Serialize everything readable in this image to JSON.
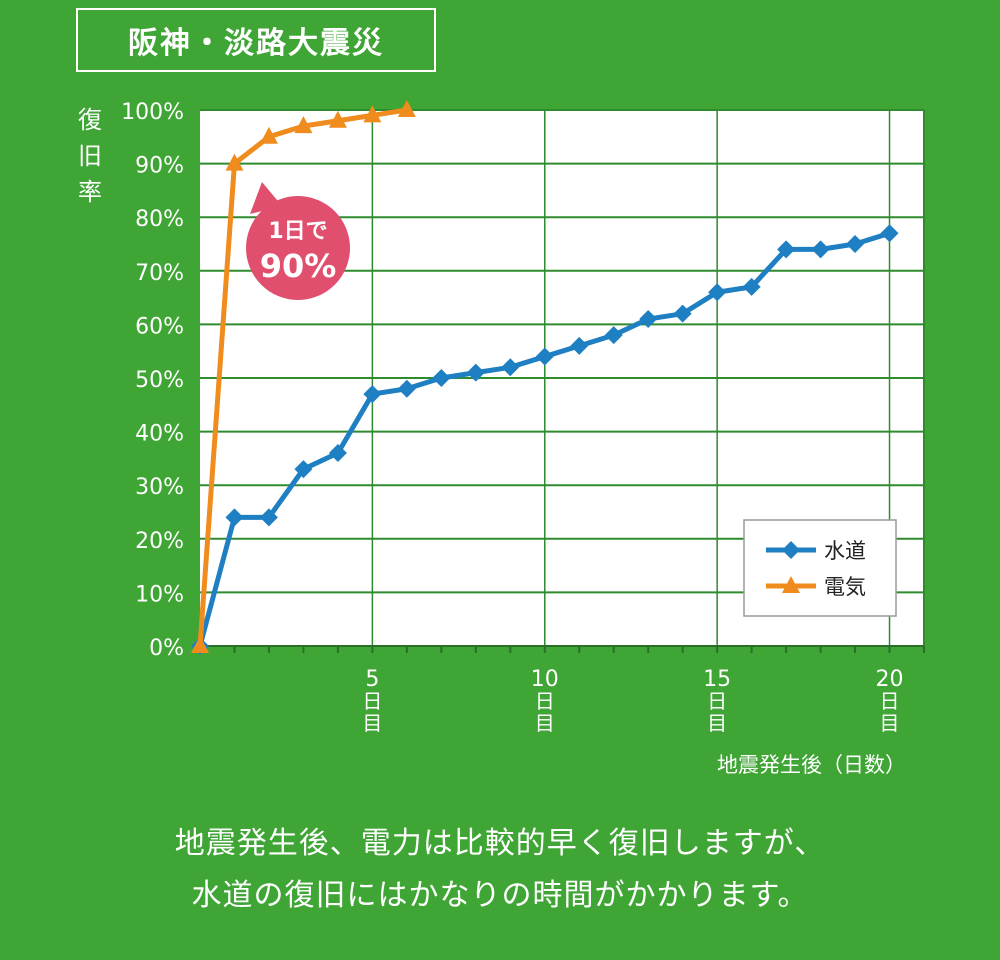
{
  "title": "阪神・淡路大震災",
  "caption_lines": [
    "地震発生後、電力は比較的早く復旧しますが、",
    "水道の復旧にはかなりの時間がかかります。"
  ],
  "callout": {
    "line1": "1日で",
    "line2": "90%"
  },
  "colors": {
    "background": "#3fa535",
    "plot_bg": "#ffffff",
    "grid": "#2e8b2e",
    "water": "#1f7fc3",
    "electric": "#f08c1e",
    "callout": "#e0506e"
  },
  "chart_data": {
    "type": "line",
    "ylabel": "復旧率",
    "xlabel": "地震発生後（日数）",
    "ylim": [
      0,
      100
    ],
    "xlim": [
      0,
      21
    ],
    "y_ticks": [
      "0%",
      "10%",
      "20%",
      "30%",
      "40%",
      "50%",
      "60%",
      "70%",
      "80%",
      "90%",
      "100%"
    ],
    "x_ticks": [
      {
        "value": 5,
        "label": "5",
        "unit": "日目"
      },
      {
        "value": 10,
        "label": "10",
        "unit": "日目"
      },
      {
        "value": 15,
        "label": "15",
        "unit": "日目"
      },
      {
        "value": 20,
        "label": "20",
        "unit": "日目"
      }
    ],
    "legend_position": "bottom-right",
    "series": [
      {
        "name": "水道",
        "marker": "diamond",
        "x": [
          0,
          1,
          2,
          3,
          4,
          5,
          6,
          7,
          8,
          9,
          10,
          11,
          12,
          13,
          14,
          15,
          16,
          17,
          18,
          19,
          20
        ],
        "values": [
          0,
          24,
          24,
          33,
          36,
          47,
          48,
          50,
          51,
          52,
          54,
          56,
          58,
          61,
          62,
          66,
          67,
          74,
          74,
          75,
          77
        ]
      },
      {
        "name": "電気",
        "marker": "triangle",
        "x": [
          0,
          1,
          2,
          3,
          4,
          5,
          6
        ],
        "values": [
          0,
          90,
          95,
          97,
          98,
          99,
          100
        ]
      }
    ]
  }
}
